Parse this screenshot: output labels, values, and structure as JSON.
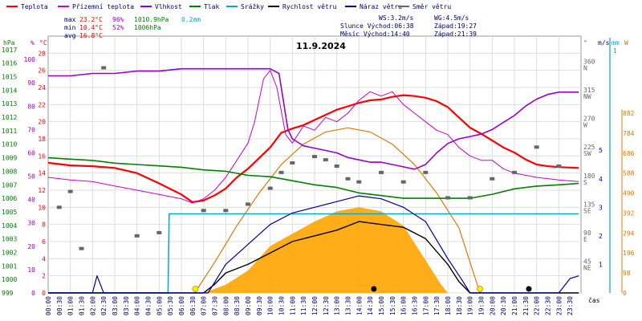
{
  "chart_data": {
    "type": "line",
    "title": "11.9.2024",
    "legend": [
      {
        "name": "Teplota",
        "color": "#ff0000"
      },
      {
        "name": "Přízemní teplota",
        "color": "#cc00cc"
      },
      {
        "name": "Vlhkost",
        "color": "#9900cc"
      },
      {
        "name": "Tlak",
        "color": "#008000"
      },
      {
        "name": "Srážky",
        "color": "#00aacc"
      },
      {
        "name": "Rychlost větru",
        "color": "#000000"
      },
      {
        "name": "Náraz větru",
        "color": "#000099"
      },
      {
        "name": "Směr větru",
        "color": "#666666"
      }
    ],
    "stats": {
      "max_label": "max",
      "max_temp": "23.2°C",
      "max_hum": "96%",
      "max_press": "1010.9hPa",
      "max_rain": "0.2mm",
      "min_label": "min",
      "min_temp": "10.4°C",
      "min_hum": "52%",
      "min_press": "1006hPa",
      "avg_label": "avg",
      "avg_temp": "16.8°C"
    },
    "info": {
      "ws": "WS:3.2m/s",
      "wg": "WG:4.5m/s",
      "sun_rise": "Slunce Východ:06:38",
      "sun_set": "Západ:19:27",
      "moon_rise": "Měsíc  Východ:14:40",
      "moon_set": "Západ:21:39"
    },
    "axis_units": {
      "press": "hPa",
      "hum": "%",
      "temp": "°C",
      "dir": "°",
      "wind": "m/s",
      "rain": "mm",
      "solar": "W",
      "x": "čas"
    },
    "pressure_ticks": [
      "999",
      "1000",
      "1001",
      "1002",
      "1003",
      "1004",
      "1005",
      "1006",
      "1007",
      "1008",
      "1009",
      "1010",
      "1011",
      "1012",
      "1013",
      "1014",
      "1015",
      "1016",
      "1017"
    ],
    "humidity_ticks": [
      "0",
      "10",
      "20",
      "30",
      "40",
      "50",
      "60",
      "70",
      "80",
      "90",
      "100"
    ],
    "temperature_ticks": [
      "0",
      "2",
      "4",
      "6",
      "8",
      "10",
      "12",
      "14",
      "16",
      "18",
      "20",
      "22",
      "24",
      "26",
      "28"
    ],
    "direction_ticks": [
      {
        "deg": "45",
        "name": "NE"
      },
      {
        "deg": "90",
        "name": "E"
      },
      {
        "deg": "135",
        "name": "SE"
      },
      {
        "deg": "180",
        "name": "S"
      },
      {
        "deg": "225",
        "name": "SW"
      },
      {
        "deg": "270",
        "name": "W"
      },
      {
        "deg": "315",
        "name": "NW"
      },
      {
        "deg": "360",
        "name": "N"
      }
    ],
    "wind_ticks": [
      "1",
      "2",
      "3",
      "4",
      "5"
    ],
    "rain_ticks": [
      "1"
    ],
    "solar_ticks": [
      "0",
      "98",
      "196",
      "294",
      "392",
      "490",
      "588",
      "686",
      "784",
      "882"
    ],
    "x_labels": [
      "00:00",
      "00:30",
      "01:00",
      "01:30",
      "02:00",
      "02:30",
      "03:00",
      "03:30",
      "04:00",
      "04:30",
      "05:00",
      "05:30",
      "06:00",
      "06:30",
      "07:00",
      "07:30",
      "08:00",
      "08:30",
      "09:00",
      "09:30",
      "10:00",
      "10:30",
      "11:00",
      "11:30",
      "12:00",
      "12:30",
      "13:00",
      "13:30",
      "14:00",
      "14:30",
      "15:00",
      "15:30",
      "16:00",
      "16:30",
      "17:00",
      "17:30",
      "18:00",
      "18:30",
      "19:00",
      "19:30",
      "20:00",
      "20:30",
      "21:00",
      "21:30",
      "22:00",
      "22:30",
      "23:00",
      "23:30"
    ],
    "markers": {
      "sunrise_h": 6.63,
      "sunset_h": 19.45,
      "moonrise_h": 14.67,
      "moonset_h": 21.65
    },
    "series": [
      {
        "name": "Teplota",
        "unit": "°C",
        "color": "#ff0000",
        "points": [
          [
            0,
            15.2
          ],
          [
            1,
            14.9
          ],
          [
            2,
            14.8
          ],
          [
            3,
            14.6
          ],
          [
            4,
            14.0
          ],
          [
            5,
            12.8
          ],
          [
            6,
            11.5
          ],
          [
            6.5,
            10.6
          ],
          [
            7,
            10.8
          ],
          [
            7.5,
            11.4
          ],
          [
            8,
            12.2
          ],
          [
            8.5,
            13.5
          ],
          [
            9,
            14.5
          ],
          [
            10,
            17.0
          ],
          [
            10.5,
            18.7
          ],
          [
            11,
            19.2
          ],
          [
            11.5,
            19.6
          ],
          [
            12,
            20.2
          ],
          [
            12.5,
            20.8
          ],
          [
            13,
            21.4
          ],
          [
            13.5,
            21.8
          ],
          [
            14,
            22.2
          ],
          [
            14.5,
            22.5
          ],
          [
            15,
            22.6
          ],
          [
            15.5,
            22.9
          ],
          [
            16,
            23.1
          ],
          [
            16.5,
            23.0
          ],
          [
            17,
            22.8
          ],
          [
            17.5,
            22.4
          ],
          [
            18,
            21.7
          ],
          [
            18.5,
            20.5
          ],
          [
            19,
            19.3
          ],
          [
            19.5,
            18.6
          ],
          [
            20,
            17.8
          ],
          [
            20.5,
            17.0
          ],
          [
            21,
            16.4
          ],
          [
            21.5,
            15.6
          ],
          [
            22,
            15.0
          ],
          [
            22.5,
            14.8
          ],
          [
            23,
            14.7
          ],
          [
            23.9,
            14.6
          ]
        ]
      },
      {
        "name": "Přízemní teplota",
        "unit": "°C",
        "color": "#cc00cc",
        "points": [
          [
            0,
            13.5
          ],
          [
            1,
            13.2
          ],
          [
            2,
            13.0
          ],
          [
            3,
            12.5
          ],
          [
            4,
            12.0
          ],
          [
            5,
            11.5
          ],
          [
            6,
            11.0
          ],
          [
            6.5,
            10.5
          ],
          [
            7,
            11.0
          ],
          [
            7.5,
            12.0
          ],
          [
            8,
            13.5
          ],
          [
            8.5,
            15.5
          ],
          [
            9,
            17.5
          ],
          [
            9.3,
            20.0
          ],
          [
            9.7,
            25.0
          ],
          [
            10,
            26.0
          ],
          [
            10.3,
            24.0
          ],
          [
            10.7,
            18.5
          ],
          [
            11,
            17.5
          ],
          [
            11.5,
            19.5
          ],
          [
            12,
            19.0
          ],
          [
            12.5,
            20.5
          ],
          [
            13,
            20.0
          ],
          [
            13.5,
            21.0
          ],
          [
            14,
            22.5
          ],
          [
            14.5,
            23.5
          ],
          [
            15,
            23.0
          ],
          [
            15.5,
            23.5
          ],
          [
            16,
            22.0
          ],
          [
            16.5,
            21.0
          ],
          [
            17,
            20.0
          ],
          [
            17.5,
            19.0
          ],
          [
            18,
            18.5
          ],
          [
            18.5,
            17.0
          ],
          [
            19,
            16.0
          ],
          [
            19.5,
            15.5
          ],
          [
            20,
            15.5
          ],
          [
            20.5,
            14.5
          ],
          [
            21,
            14.0
          ],
          [
            22,
            13.5
          ],
          [
            23,
            13.2
          ],
          [
            23.9,
            13.0
          ]
        ]
      },
      {
        "name": "Vlhkost",
        "unit": "%",
        "color": "#9900cc",
        "points": [
          [
            0,
            93
          ],
          [
            1,
            93
          ],
          [
            2,
            94
          ],
          [
            3,
            94
          ],
          [
            4,
            95
          ],
          [
            5,
            95
          ],
          [
            6,
            96
          ],
          [
            7,
            96
          ],
          [
            8,
            96
          ],
          [
            9,
            96
          ],
          [
            10,
            96
          ],
          [
            10.4,
            94
          ],
          [
            10.8,
            70
          ],
          [
            11,
            66
          ],
          [
            11.5,
            63
          ],
          [
            12,
            62
          ],
          [
            12.5,
            61
          ],
          [
            13,
            60
          ],
          [
            13.5,
            58
          ],
          [
            14,
            57
          ],
          [
            14.5,
            56
          ],
          [
            15,
            56
          ],
          [
            15.5,
            55
          ],
          [
            16,
            54
          ],
          [
            16.5,
            53
          ],
          [
            17,
            55
          ],
          [
            17.5,
            60
          ],
          [
            18,
            64
          ],
          [
            18.5,
            66
          ],
          [
            19,
            67
          ],
          [
            19.5,
            68
          ],
          [
            20,
            70
          ],
          [
            20.5,
            73
          ],
          [
            21,
            76
          ],
          [
            21.5,
            80
          ],
          [
            22,
            83
          ],
          [
            22.5,
            85
          ],
          [
            23,
            86
          ],
          [
            23.9,
            86
          ]
        ]
      },
      {
        "name": "Tlak",
        "unit": "hPa",
        "color": "#008000",
        "points": [
          [
            0,
            1009.0
          ],
          [
            1,
            1008.9
          ],
          [
            2,
            1008.8
          ],
          [
            3,
            1008.6
          ],
          [
            4,
            1008.5
          ],
          [
            5,
            1008.4
          ],
          [
            6,
            1008.3
          ],
          [
            7,
            1008.1
          ],
          [
            8,
            1008.0
          ],
          [
            9,
            1007.7
          ],
          [
            10,
            1007.6
          ],
          [
            11,
            1007.3
          ],
          [
            12,
            1007.0
          ],
          [
            13,
            1006.8
          ],
          [
            14,
            1006.4
          ],
          [
            15,
            1006.2
          ],
          [
            16,
            1006.0
          ],
          [
            17,
            1006.0
          ],
          [
            18,
            1006.0
          ],
          [
            19,
            1006.0
          ],
          [
            20,
            1006.3
          ],
          [
            21,
            1006.7
          ],
          [
            22,
            1006.9
          ],
          [
            23,
            1007.0
          ],
          [
            23.9,
            1007.1
          ]
        ]
      },
      {
        "name": "Srážky",
        "unit": "mm",
        "color": "#00aacc",
        "points": [
          [
            0,
            0
          ],
          [
            5.4,
            0
          ],
          [
            5.45,
            0.2
          ],
          [
            23.9,
            0.2
          ]
        ]
      },
      {
        "name": "Rychlost větru",
        "unit": "m/s",
        "color": "#000000",
        "points": [
          [
            0,
            0
          ],
          [
            7,
            0
          ],
          [
            7.5,
            0.3
          ],
          [
            8,
            0.7
          ],
          [
            9,
            1.0
          ],
          [
            10,
            1.4
          ],
          [
            11,
            1.8
          ],
          [
            12,
            2.0
          ],
          [
            13,
            2.2
          ],
          [
            14,
            2.5
          ],
          [
            15,
            2.4
          ],
          [
            16,
            2.3
          ],
          [
            17,
            1.9
          ],
          [
            18,
            1.0
          ],
          [
            18.5,
            0.4
          ],
          [
            19,
            0
          ],
          [
            23.9,
            0
          ]
        ]
      },
      {
        "name": "Náraz větru",
        "unit": "m/s",
        "color": "#000099",
        "points": [
          [
            0,
            0
          ],
          [
            2,
            0
          ],
          [
            2.2,
            0.6
          ],
          [
            2.5,
            0
          ],
          [
            7.2,
            0
          ],
          [
            8,
            1.0
          ],
          [
            9,
            1.7
          ],
          [
            10,
            2.4
          ],
          [
            11,
            2.8
          ],
          [
            12,
            3.0
          ],
          [
            13,
            3.2
          ],
          [
            14,
            3.4
          ],
          [
            15,
            3.3
          ],
          [
            16,
            3.0
          ],
          [
            17,
            2.5
          ],
          [
            18,
            1.2
          ],
          [
            18.6,
            0.5
          ],
          [
            19,
            0
          ],
          [
            23,
            0
          ],
          [
            23.5,
            0.5
          ],
          [
            23.9,
            0.6
          ]
        ]
      },
      {
        "name": "Směr větru",
        "unit": "°",
        "color": "#666666",
        "points": [
          [
            0.5,
            135
          ],
          [
            1,
            160
          ],
          [
            1.5,
            70
          ],
          [
            2.5,
            355
          ],
          [
            4,
            90
          ],
          [
            5,
            95
          ],
          [
            7,
            130
          ],
          [
            8,
            130
          ],
          [
            9,
            140
          ],
          [
            10,
            165
          ],
          [
            10.5,
            190
          ],
          [
            11,
            205
          ],
          [
            12,
            215
          ],
          [
            12.5,
            210
          ],
          [
            13,
            200
          ],
          [
            13.5,
            180
          ],
          [
            14,
            175
          ],
          [
            15,
            190
          ],
          [
            16,
            175
          ],
          [
            17,
            190
          ],
          [
            18,
            150
          ],
          [
            19,
            150
          ],
          [
            20,
            180
          ],
          [
            21,
            190
          ],
          [
            22,
            230
          ],
          [
            23,
            200
          ]
        ]
      }
    ],
    "solar": {
      "name": "solar radiation",
      "unit": "W",
      "color": "#ffa500",
      "points": [
        [
          7,
          0
        ],
        [
          8,
          40
        ],
        [
          9,
          110
        ],
        [
          10,
          230
        ],
        [
          11,
          290
        ],
        [
          12,
          350
        ],
        [
          13,
          400
        ],
        [
          14,
          420
        ],
        [
          15,
          400
        ],
        [
          16,
          330
        ],
        [
          17,
          160
        ],
        [
          17.7,
          40
        ],
        [
          18,
          0
        ]
      ]
    },
    "solar_max": {
      "name": "theoretical solar max",
      "unit": "W",
      "color": "#e07800",
      "points": [
        [
          6.6,
          0
        ],
        [
          7.5,
          150
        ],
        [
          8.5,
          330
        ],
        [
          9.5,
          490
        ],
        [
          10.5,
          630
        ],
        [
          11.5,
          730
        ],
        [
          12.5,
          790
        ],
        [
          13.5,
          810
        ],
        [
          14.5,
          790
        ],
        [
          15.5,
          730
        ],
        [
          16.5,
          630
        ],
        [
          17.5,
          490
        ],
        [
          18.5,
          320
        ],
        [
          19.45,
          0
        ]
      ]
    }
  }
}
